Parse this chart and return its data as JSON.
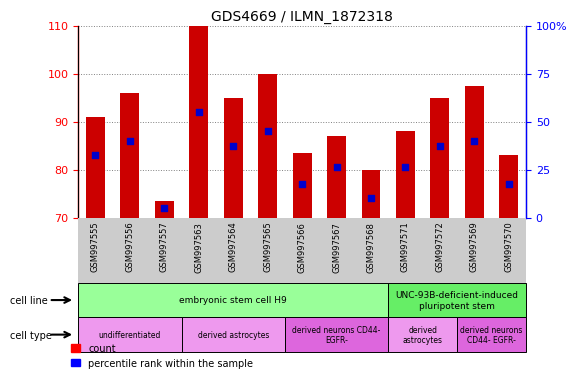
{
  "title": "GDS4669 / ILMN_1872318",
  "samples": [
    "GSM997555",
    "GSM997556",
    "GSM997557",
    "GSM997563",
    "GSM997564",
    "GSM997565",
    "GSM997566",
    "GSM997567",
    "GSM997568",
    "GSM997571",
    "GSM997572",
    "GSM997569",
    "GSM997570"
  ],
  "bar_tops": [
    91,
    96,
    73.5,
    110,
    95,
    100,
    83.5,
    87,
    80,
    88,
    95,
    97.5,
    83
  ],
  "bar_bottoms": [
    70,
    70,
    70,
    70,
    70,
    70,
    70,
    70,
    70,
    70,
    70,
    70,
    70
  ],
  "blue_dots": [
    83,
    86,
    72,
    92,
    85,
    88,
    77,
    80.5,
    74,
    80.5,
    85,
    86,
    77
  ],
  "ylim_left": [
    70,
    110
  ],
  "ylim_right": [
    0,
    100
  ],
  "yticks_left": [
    70,
    80,
    90,
    100,
    110
  ],
  "yticks_right": [
    0,
    25,
    50,
    75,
    100
  ],
  "ytick_labels_right": [
    "0",
    "25",
    "50",
    "75",
    "100%"
  ],
  "bar_color": "#cc0000",
  "dot_color": "#0000cc",
  "bar_width": 0.55,
  "cell_line_groups": [
    {
      "label": "embryonic stem cell H9",
      "start": 0,
      "end": 8,
      "color": "#99ff99"
    },
    {
      "label": "UNC-93B-deficient-induced\npluripotent stem",
      "start": 9,
      "end": 12,
      "color": "#66ee66"
    }
  ],
  "cell_type_groups": [
    {
      "label": "undifferentiated",
      "start": 0,
      "end": 2,
      "color": "#ee99ee"
    },
    {
      "label": "derived astrocytes",
      "start": 3,
      "end": 5,
      "color": "#ee99ee"
    },
    {
      "label": "derived neurons CD44-\nEGFR-",
      "start": 6,
      "end": 8,
      "color": "#dd66dd"
    },
    {
      "label": "derived\nastrocytes",
      "start": 9,
      "end": 10,
      "color": "#ee99ee"
    },
    {
      "label": "derived neurons\nCD44- EGFR-",
      "start": 11,
      "end": 12,
      "color": "#dd66dd"
    }
  ],
  "cell_line_label": "cell line",
  "cell_type_label": "cell type"
}
